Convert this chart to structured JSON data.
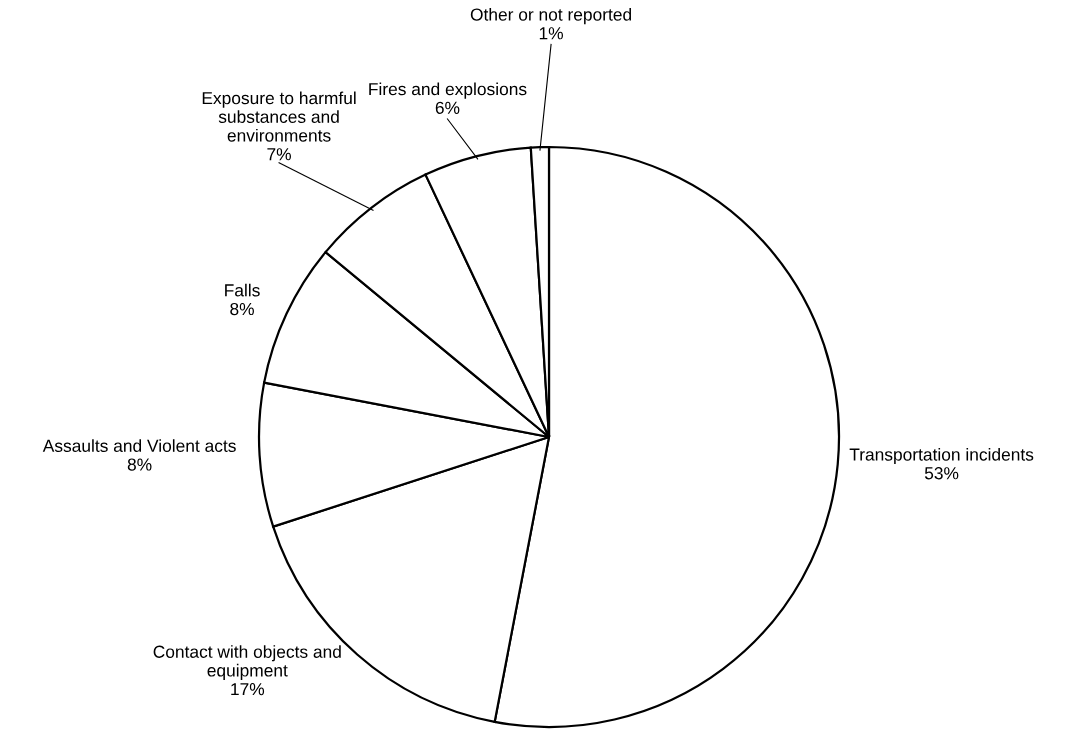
{
  "chart_data": {
    "type": "pie",
    "categories": [
      "Transportation incidents",
      "Contact with objects and\nequipment",
      "Assaults and Violent acts",
      "Falls",
      "Exposure to harmful\nsubstances and\nenvironments",
      "Fires and explosions",
      "Other or not reported"
    ],
    "values": [
      53,
      17,
      8,
      8,
      7,
      6,
      1
    ],
    "colors": [
      "#ffffff",
      "#ffffff",
      "#ffffff",
      "#ffffff",
      "#ffffff",
      "#ffffff",
      "#ffffff"
    ],
    "value_labels": [
      "53%",
      "17%",
      "8%",
      "8%",
      "7%",
      "6%",
      "1%"
    ],
    "legend": false
  }
}
